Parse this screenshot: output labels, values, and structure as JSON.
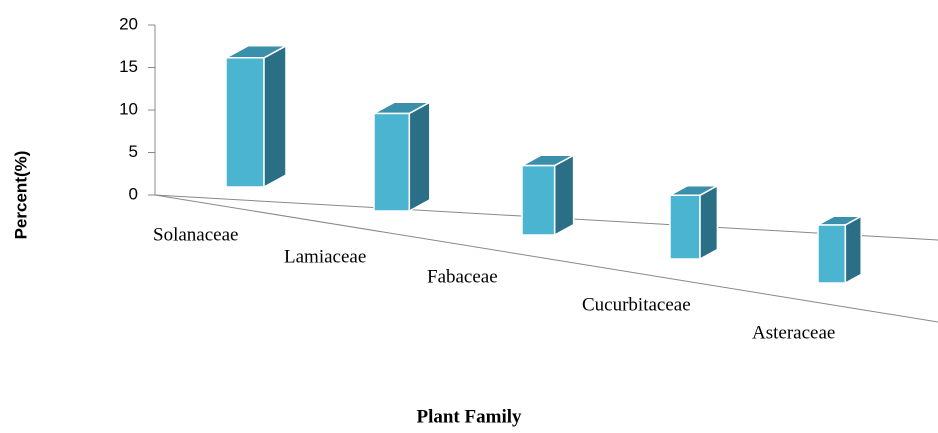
{
  "chart_data": {
    "type": "bar3d",
    "xlabel": "Plant Family",
    "ylabel": "Percent(%)",
    "categories": [
      "Solanaceae",
      "Lamiaceae",
      "Fabaceae",
      "Cucurbitaceae",
      "Asteraceae"
    ],
    "values": [
      16,
      13,
      10,
      10,
      10
    ],
    "color": "#4bb4d1",
    "ylim": [
      0,
      20
    ],
    "yticks": [
      0,
      5,
      10,
      15,
      20
    ]
  }
}
